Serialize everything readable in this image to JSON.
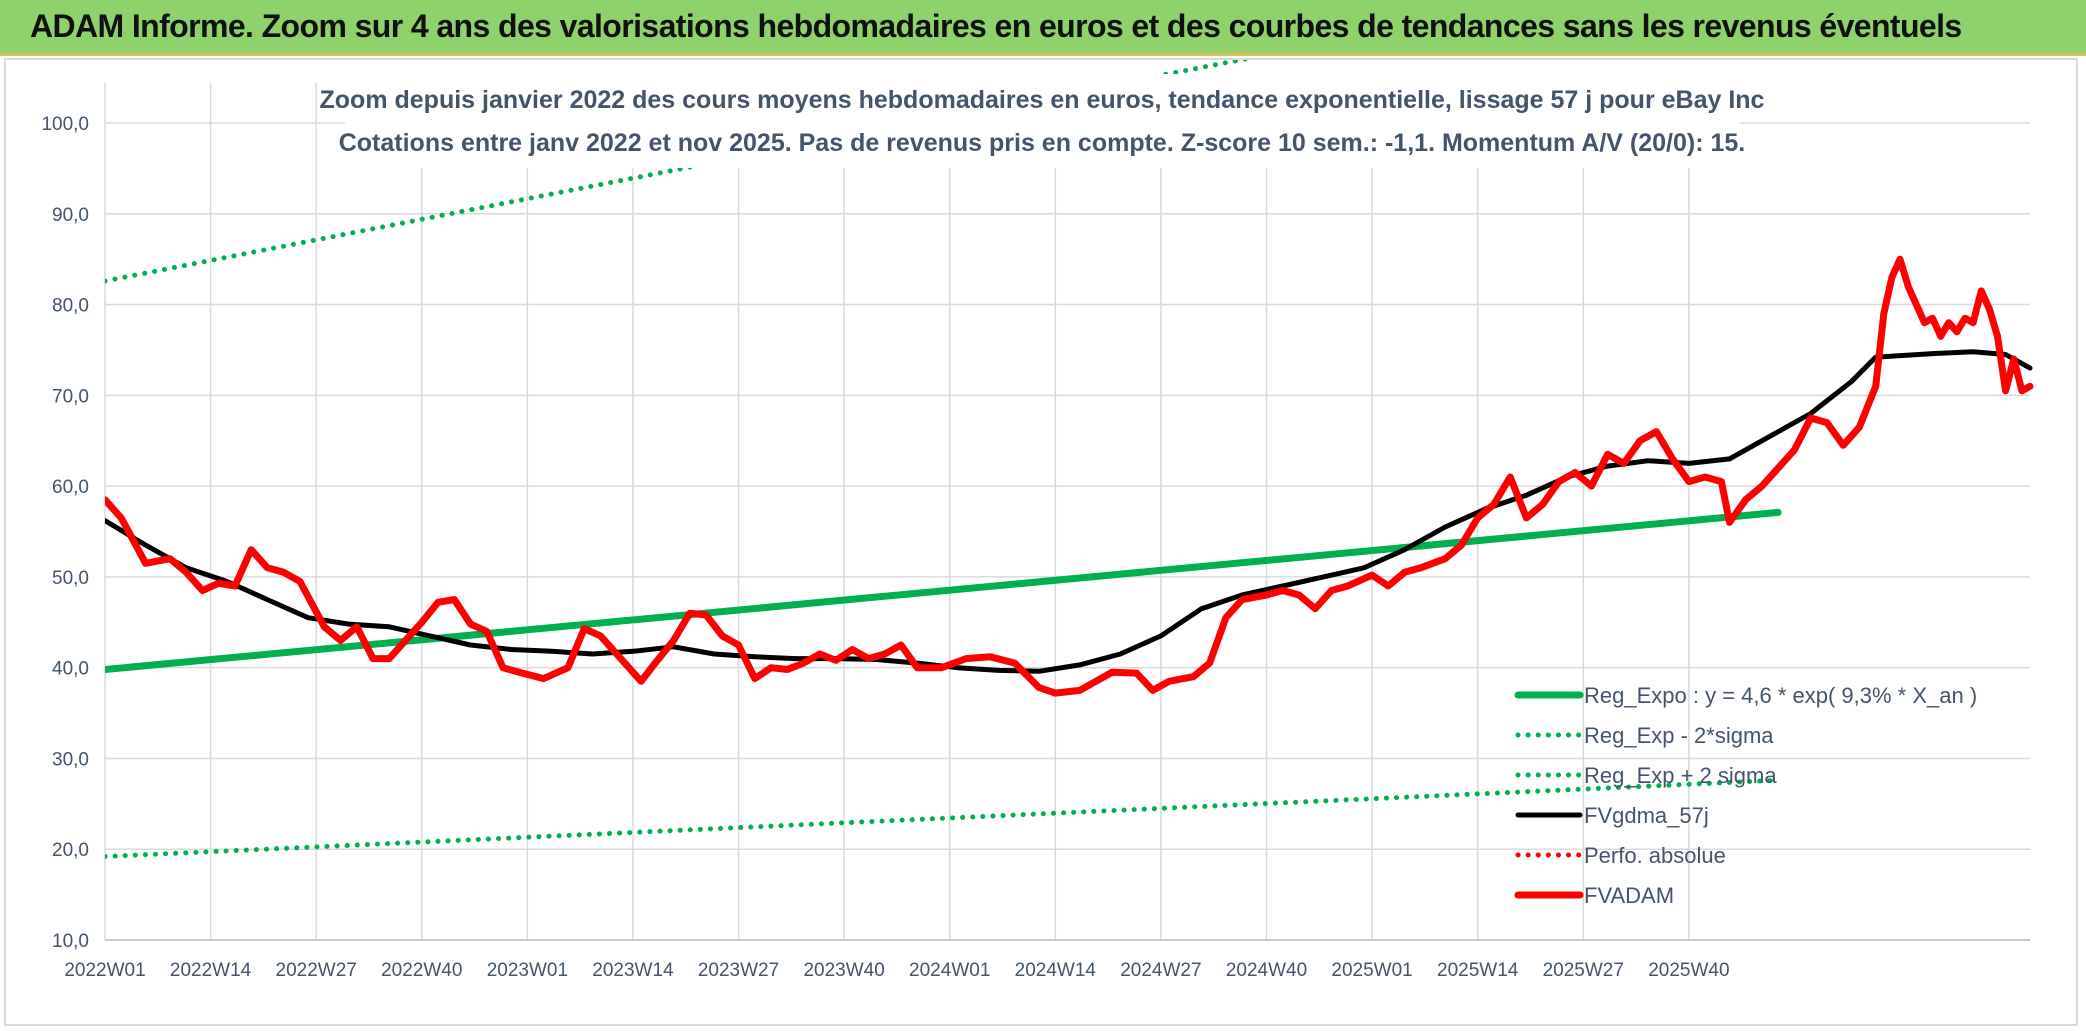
{
  "header": {
    "title": "ADAM Informe. Zoom sur 4 ans des valorisations hebdomadaires en euros et des courbes de tendances sans les revenus éventuels"
  },
  "colors": {
    "banner": "#8fd16a",
    "trend": "#00b050",
    "gdma": "#000000",
    "adam": "#ff0000",
    "perf": "#ff0000",
    "grid": "#d9d9d9",
    "text": "#44546a"
  },
  "chart_data": {
    "type": "line",
    "title_lines": [
      "Zoom depuis janvier 2022 des cours moyens hebdomadaires en euros, tendance exponentielle, lissage 57 j pour eBay Inc",
      "Cotations entre janv 2022 et nov 2025. Pas de revenus pris en compte. Z-score 10 sem.: -1,1. Momentum A/V (20/0): 15."
    ],
    "ylim": [
      10,
      100
    ],
    "ytick_labels": [
      "10,0",
      "20,0",
      "30,0",
      "40,0",
      "50,0",
      "60,0",
      "70,0",
      "80,0",
      "90,0",
      "100,0"
    ],
    "x_labels": [
      "2022W01",
      "2022W14",
      "2022W27",
      "2022W40",
      "2023W01",
      "2023W14",
      "2023W27",
      "2023W40",
      "2024W01",
      "2024W14",
      "2024W27",
      "2024W40",
      "2025W01",
      "2025W14",
      "2025W27",
      "2025W40"
    ],
    "grid": true,
    "legend_position": "bottom-right",
    "series": [
      {
        "name": "Reg_Expo : y = 4,6 * exp( 9,3% *  X_an )",
        "style": "solid-thick",
        "color": "#00b050",
        "values_at_weeks": [
          [
            0,
            39.8
          ],
          [
            206,
            57.1
          ]
        ]
      },
      {
        "name": "Reg_Exp - 2*sigma",
        "style": "dotted",
        "color": "#00b050",
        "values_at_weeks": [
          [
            0,
            19.2
          ],
          [
            206,
            27.6
          ]
        ]
      },
      {
        "name": "Reg_Exp + 2 sigma",
        "style": "dotted",
        "color": "#00b050",
        "values_at_weeks": [
          [
            0,
            82.6
          ],
          [
            206,
            118.5
          ]
        ]
      },
      {
        "name": "FVgdma_57j",
        "style": "solid",
        "color": "#000000",
        "values_at_weeks": [
          [
            0,
            56.2
          ],
          [
            5,
            53.5
          ],
          [
            10,
            51.0
          ],
          [
            15,
            49.5
          ],
          [
            20,
            47.5
          ],
          [
            25,
            45.5
          ],
          [
            30,
            44.8
          ],
          [
            35,
            44.5
          ],
          [
            40,
            43.5
          ],
          [
            45,
            42.5
          ],
          [
            50,
            42.0
          ],
          [
            55,
            41.8
          ],
          [
            60,
            41.5
          ],
          [
            65,
            41.8
          ],
          [
            70,
            42.3
          ],
          [
            75,
            41.5
          ],
          [
            80,
            41.2
          ],
          [
            85,
            41.0
          ],
          [
            90,
            41.0
          ],
          [
            95,
            40.9
          ],
          [
            100,
            40.5
          ],
          [
            105,
            40.0
          ],
          [
            110,
            39.7
          ],
          [
            115,
            39.6
          ],
          [
            120,
            40.3
          ],
          [
            125,
            41.5
          ],
          [
            130,
            43.5
          ],
          [
            135,
            46.5
          ],
          [
            140,
            48.0
          ],
          [
            145,
            49.0
          ],
          [
            150,
            50.0
          ],
          [
            155,
            51.0
          ],
          [
            160,
            53.0
          ],
          [
            165,
            55.5
          ],
          [
            170,
            57.5
          ],
          [
            175,
            59.0
          ],
          [
            180,
            61.0
          ],
          [
            185,
            62.2
          ],
          [
            190,
            62.8
          ],
          [
            195,
            62.5
          ],
          [
            200,
            63.0
          ],
          [
            205,
            65.5
          ],
          [
            210,
            68.0
          ],
          [
            215,
            71.5
          ],
          [
            218,
            74.2
          ],
          [
            225,
            74.6
          ],
          [
            230,
            74.8
          ],
          [
            234,
            74.5
          ],
          [
            237,
            73.0
          ]
        ]
      },
      {
        "name": "Perfo. absolue",
        "style": "dotted",
        "color": "#ff0000",
        "values_at_weeks": []
      },
      {
        "name": "FVADAM",
        "style": "solid-thick",
        "color": "#ff0000",
        "values_at_weeks": [
          [
            0,
            58.5
          ],
          [
            2,
            56.5
          ],
          [
            5,
            51.5
          ],
          [
            8,
            52.0
          ],
          [
            10,
            50.5
          ],
          [
            12,
            48.5
          ],
          [
            14,
            49.3
          ],
          [
            16,
            49.0
          ],
          [
            18,
            53.0
          ],
          [
            20,
            51.0
          ],
          [
            22,
            50.5
          ],
          [
            24,
            49.5
          ],
          [
            27,
            44.5
          ],
          [
            29,
            43.0
          ],
          [
            31,
            44.5
          ],
          [
            33,
            41.0
          ],
          [
            35,
            41.0
          ],
          [
            37,
            43.0
          ],
          [
            39,
            45.0
          ],
          [
            41,
            47.2
          ],
          [
            43,
            47.5
          ],
          [
            45,
            44.8
          ],
          [
            47,
            44.0
          ],
          [
            49,
            40.0
          ],
          [
            51,
            39.5
          ],
          [
            54,
            38.8
          ],
          [
            57,
            40.0
          ],
          [
            59,
            44.3
          ],
          [
            61,
            43.5
          ],
          [
            64,
            40.5
          ],
          [
            66,
            38.5
          ],
          [
            68,
            40.8
          ],
          [
            70,
            43.0
          ],
          [
            72,
            46.0
          ],
          [
            74,
            45.8
          ],
          [
            76,
            43.5
          ],
          [
            78,
            42.5
          ],
          [
            80,
            38.8
          ],
          [
            82,
            40.0
          ],
          [
            84,
            39.8
          ],
          [
            86,
            40.5
          ],
          [
            88,
            41.5
          ],
          [
            90,
            40.8
          ],
          [
            92,
            42.0
          ],
          [
            94,
            41.0
          ],
          [
            96,
            41.5
          ],
          [
            98,
            42.5
          ],
          [
            100,
            40.0
          ],
          [
            103,
            40.0
          ],
          [
            106,
            41.0
          ],
          [
            109,
            41.2
          ],
          [
            112,
            40.5
          ],
          [
            115,
            37.8
          ],
          [
            117,
            37.2
          ],
          [
            120,
            37.5
          ],
          [
            122,
            38.5
          ],
          [
            124,
            39.5
          ],
          [
            127,
            39.4
          ],
          [
            129,
            37.5
          ],
          [
            131,
            38.5
          ],
          [
            134,
            39.0
          ],
          [
            136,
            40.5
          ],
          [
            138,
            45.5
          ],
          [
            140,
            47.5
          ],
          [
            143,
            48.0
          ],
          [
            145,
            48.5
          ],
          [
            147,
            48.0
          ],
          [
            149,
            46.5
          ],
          [
            151,
            48.5
          ],
          [
            153,
            49.0
          ],
          [
            156,
            50.2
          ],
          [
            158,
            49.0
          ],
          [
            160,
            50.5
          ],
          [
            162,
            51.0
          ],
          [
            165,
            52.0
          ],
          [
            167,
            53.5
          ],
          [
            169,
            56.5
          ],
          [
            171,
            58.0
          ],
          [
            173,
            61.0
          ],
          [
            175,
            56.5
          ],
          [
            177,
            58.0
          ],
          [
            179,
            60.5
          ],
          [
            181,
            61.5
          ],
          [
            183,
            60.0
          ],
          [
            185,
            63.5
          ],
          [
            187,
            62.5
          ],
          [
            189,
            65.0
          ],
          [
            191,
            66.0
          ],
          [
            193,
            63.0
          ],
          [
            195,
            60.5
          ],
          [
            197,
            61.0
          ],
          [
            199,
            60.5
          ],
          [
            200,
            56.0
          ],
          [
            202,
            58.5
          ],
          [
            204,
            60.0
          ],
          [
            206,
            62.0
          ],
          [
            208,
            64.0
          ],
          [
            210,
            67.5
          ],
          [
            212,
            67.0
          ],
          [
            214,
            64.5
          ],
          [
            216,
            66.5
          ],
          [
            218,
            71.0
          ],
          [
            219,
            79.0
          ],
          [
            220,
            83.0
          ],
          [
            221,
            85.0
          ],
          [
            222,
            82.0
          ],
          [
            223,
            80.0
          ],
          [
            224,
            78.0
          ],
          [
            225,
            78.5
          ],
          [
            226,
            76.5
          ],
          [
            227,
            78.0
          ],
          [
            228,
            77.0
          ],
          [
            229,
            78.5
          ],
          [
            230,
            78.0
          ],
          [
            231,
            81.5
          ],
          [
            232,
            79.5
          ],
          [
            233,
            76.5
          ],
          [
            234,
            70.5
          ],
          [
            235,
            74.0
          ],
          [
            236,
            70.5
          ],
          [
            237,
            71.0
          ]
        ]
      }
    ]
  }
}
